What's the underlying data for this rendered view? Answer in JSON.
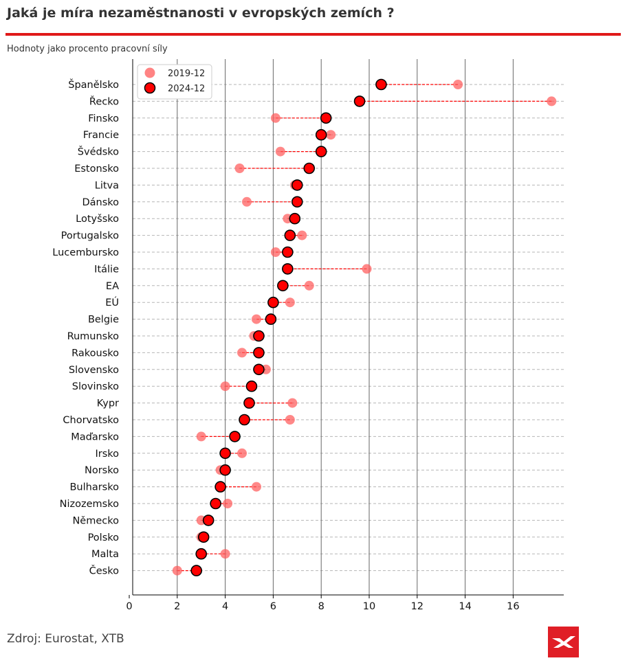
{
  "header": {
    "title": "Jaká je míra nezaměstnanosti v evropských zemích ?",
    "subtitle": "Hodnoty jako procento pracovní síly"
  },
  "footer": {
    "source": "Zdroj: Eurostat, XTB",
    "logo_icon": "xtb-logo-icon"
  },
  "colors": {
    "accent": "#e01919",
    "series_2019": "#ff5a5a",
    "series_2024": "#ff0000",
    "marker_edge": "#000000",
    "connector": "#ff0000"
  },
  "chart_data": {
    "type": "scatter",
    "title": "Jaká je míra nezaměstnanosti v evropských zemích ?",
    "subtitle": "Hodnoty jako procento pracovní síly",
    "xlabel": "",
    "ylabel": "",
    "xlim": [
      0,
      18
    ],
    "xticks": [
      0,
      2,
      4,
      6,
      8,
      10,
      12,
      14,
      16
    ],
    "grid": true,
    "legend_position": "top-left",
    "categories": [
      "Španělsko",
      "Řecko",
      "Finsko",
      "Francie",
      "Švédsko",
      "Estonsko",
      "Litva",
      "Dánsko",
      "Lotyšsko",
      "Portugalsko",
      "Lucembursko",
      "Itálie",
      "EA",
      "EÚ",
      "Belgie",
      "Rumunsko",
      "Rakousko",
      "Slovensko",
      "Slovinsko",
      "Kypr",
      "Chorvatsko",
      "Maďarsko",
      "Irsko",
      "Norsko",
      "Bulharsko",
      "Nizozemsko",
      "Německo",
      "Polsko",
      "Malta",
      "Česko"
    ],
    "series": [
      {
        "name": "2019-12",
        "values": [
          13.7,
          17.6,
          6.1,
          8.4,
          6.3,
          4.6,
          6.9,
          4.9,
          6.6,
          7.2,
          6.1,
          9.9,
          7.5,
          6.7,
          5.3,
          5.2,
          4.7,
          5.7,
          4.0,
          6.8,
          6.7,
          3.0,
          4.7,
          3.8,
          5.3,
          4.1,
          3.0,
          3.0,
          4.0,
          2.0
        ]
      },
      {
        "name": "2024-12",
        "values": [
          10.5,
          9.6,
          8.2,
          8.0,
          8.0,
          7.5,
          7.0,
          7.0,
          6.9,
          6.7,
          6.6,
          6.6,
          6.4,
          6.0,
          5.9,
          5.4,
          5.4,
          5.4,
          5.1,
          5.0,
          4.8,
          4.4,
          4.0,
          4.0,
          3.8,
          3.6,
          3.3,
          3.1,
          3.0,
          2.8
        ]
      }
    ]
  }
}
